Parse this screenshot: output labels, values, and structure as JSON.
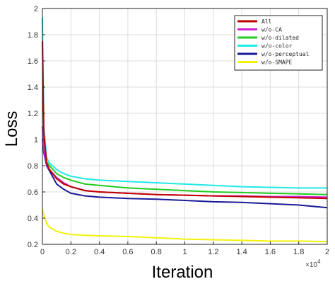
{
  "chart_data": {
    "type": "line",
    "xlabel": "Iteration",
    "ylabel": "Loss",
    "x_multiplier_base": "×10",
    "x_multiplier_exp": "4",
    "xlim": [
      0,
      2
    ],
    "ylim": [
      0.2,
      2
    ],
    "x_ticks": [
      0,
      0.2,
      0.4,
      0.6,
      0.8,
      1,
      1.2,
      1.4,
      1.6,
      1.8,
      2
    ],
    "x_tick_labels": [
      "0",
      "0.2",
      "0.4",
      "0.6",
      "0.8",
      "1",
      "1.2",
      "1.4",
      "1.6",
      "1.8",
      "2"
    ],
    "y_ticks": [
      0.2,
      0.4,
      0.6,
      0.8,
      1,
      1.2,
      1.4,
      1.6,
      1.8,
      2
    ],
    "y_tick_labels": [
      "0.2",
      "0.4",
      "0.6",
      "0.8",
      "1",
      "1.2",
      "1.4",
      "1.6",
      "1.8",
      "2"
    ],
    "grid": true,
    "legend_position": "top-right",
    "x": [
      0,
      0.01,
      0.03,
      0.05,
      0.1,
      0.15,
      0.2,
      0.3,
      0.4,
      0.6,
      0.8,
      1.0,
      1.2,
      1.4,
      1.6,
      1.8,
      2.0
    ],
    "series": [
      {
        "name": "All",
        "color": "#c00000",
        "values": [
          1.75,
          1.05,
          0.82,
          0.77,
          0.7,
          0.66,
          0.64,
          0.61,
          0.6,
          0.59,
          0.58,
          0.575,
          0.57,
          0.565,
          0.56,
          0.555,
          0.55
        ]
      },
      {
        "name": "w/o-CA",
        "color": "#d020d0",
        "values": [
          1.1,
          0.92,
          0.81,
          0.77,
          0.71,
          0.67,
          0.64,
          0.61,
          0.6,
          0.59,
          0.58,
          0.575,
          0.57,
          0.57,
          0.565,
          0.565,
          0.56
        ]
      },
      {
        "name": "w/o-dilated",
        "color": "#22cc22",
        "values": [
          1.1,
          0.95,
          0.83,
          0.8,
          0.74,
          0.71,
          0.69,
          0.66,
          0.65,
          0.63,
          0.62,
          0.61,
          0.6,
          0.595,
          0.59,
          0.585,
          0.58
        ]
      },
      {
        "name": "w/o-color",
        "color": "#22e8e8",
        "values": [
          1.93,
          1.1,
          0.86,
          0.82,
          0.77,
          0.74,
          0.72,
          0.7,
          0.69,
          0.68,
          0.67,
          0.66,
          0.65,
          0.64,
          0.635,
          0.63,
          0.63
        ]
      },
      {
        "name": "w/o-perceptual",
        "color": "#1a1a99",
        "values": [
          1.0,
          0.9,
          0.8,
          0.76,
          0.66,
          0.62,
          0.59,
          0.57,
          0.56,
          0.55,
          0.545,
          0.535,
          0.525,
          0.52,
          0.51,
          0.5,
          0.48
        ]
      },
      {
        "name": "w/o-SMAPE",
        "color": "#f2f20a",
        "values": [
          0.47,
          0.42,
          0.36,
          0.33,
          0.3,
          0.285,
          0.275,
          0.27,
          0.265,
          0.26,
          0.25,
          0.24,
          0.235,
          0.23,
          0.225,
          0.225,
          0.22
        ]
      }
    ]
  }
}
